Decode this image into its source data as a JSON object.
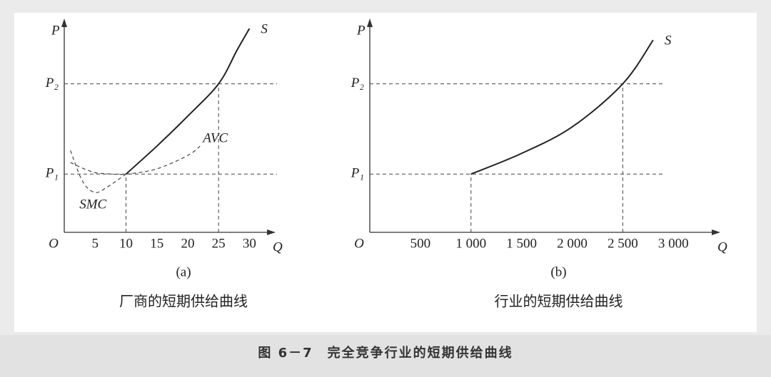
{
  "chart_data": [
    {
      "type": "line",
      "y_label": "P",
      "x_label": "Q",
      "origin_label": "O",
      "subtitle": "(a)",
      "title": "厂商的短期供给曲线",
      "xlim": [
        0,
        34
      ],
      "xticks": [
        5,
        10,
        15,
        20,
        25,
        30
      ],
      "ylim": [
        0,
        7
      ],
      "yticks": [
        {
          "value": 2,
          "label": "P₁"
        },
        {
          "value": 5.1,
          "label": "P₂"
        }
      ],
      "grid": true,
      "series": [
        {
          "name": "S",
          "color": "#222222",
          "style": "solid",
          "x": [
            10,
            15,
            20,
            25,
            28,
            30
          ],
          "values": [
            2,
            2.96,
            3.99,
            5.1,
            6.26,
            7.0
          ]
        },
        {
          "name": "AVC",
          "color": "#444444",
          "style": "dashed",
          "x": [
            1,
            3,
            5,
            7,
            10,
            15,
            20,
            22
          ],
          "values": [
            2.4,
            2.2,
            2.05,
            2.01,
            2,
            2.18,
            2.64,
            2.96
          ]
        },
        {
          "name": "SMC",
          "color": "#444444",
          "style": "dashed",
          "x": [
            1,
            3,
            5,
            7,
            10
          ],
          "values": [
            2.81,
            1.74,
            1.37,
            1.56,
            2
          ]
        }
      ]
    },
    {
      "type": "line",
      "y_label": "P",
      "x_label": "Q",
      "origin_label": "O",
      "subtitle": "(b)",
      "title": "行业的短期供给曲线",
      "xlim": [
        0,
        3450
      ],
      "xticks": [
        500,
        {
          "value": 1000,
          "label": "1 000"
        },
        {
          "value": 1500,
          "label": "1 500"
        },
        {
          "value": 2000,
          "label": "2 000"
        },
        {
          "value": 2500,
          "label": "2 500"
        },
        {
          "value": 3000,
          "label": "3 000"
        }
      ],
      "ylim": [
        0,
        7
      ],
      "yticks": [
        {
          "value": 2,
          "label": "P₁"
        },
        {
          "value": 5.1,
          "label": "P₂"
        }
      ],
      "grid": true,
      "series": [
        {
          "name": "S",
          "color": "#222222",
          "style": "solid",
          "x": [
            1000,
            1500,
            2000,
            2500,
            2800
          ],
          "values": [
            2,
            2.71,
            3.62,
            5.1,
            6.6
          ]
        }
      ]
    }
  ],
  "figure_caption": "图 6－7　完全竞争行业的短期供给曲线"
}
